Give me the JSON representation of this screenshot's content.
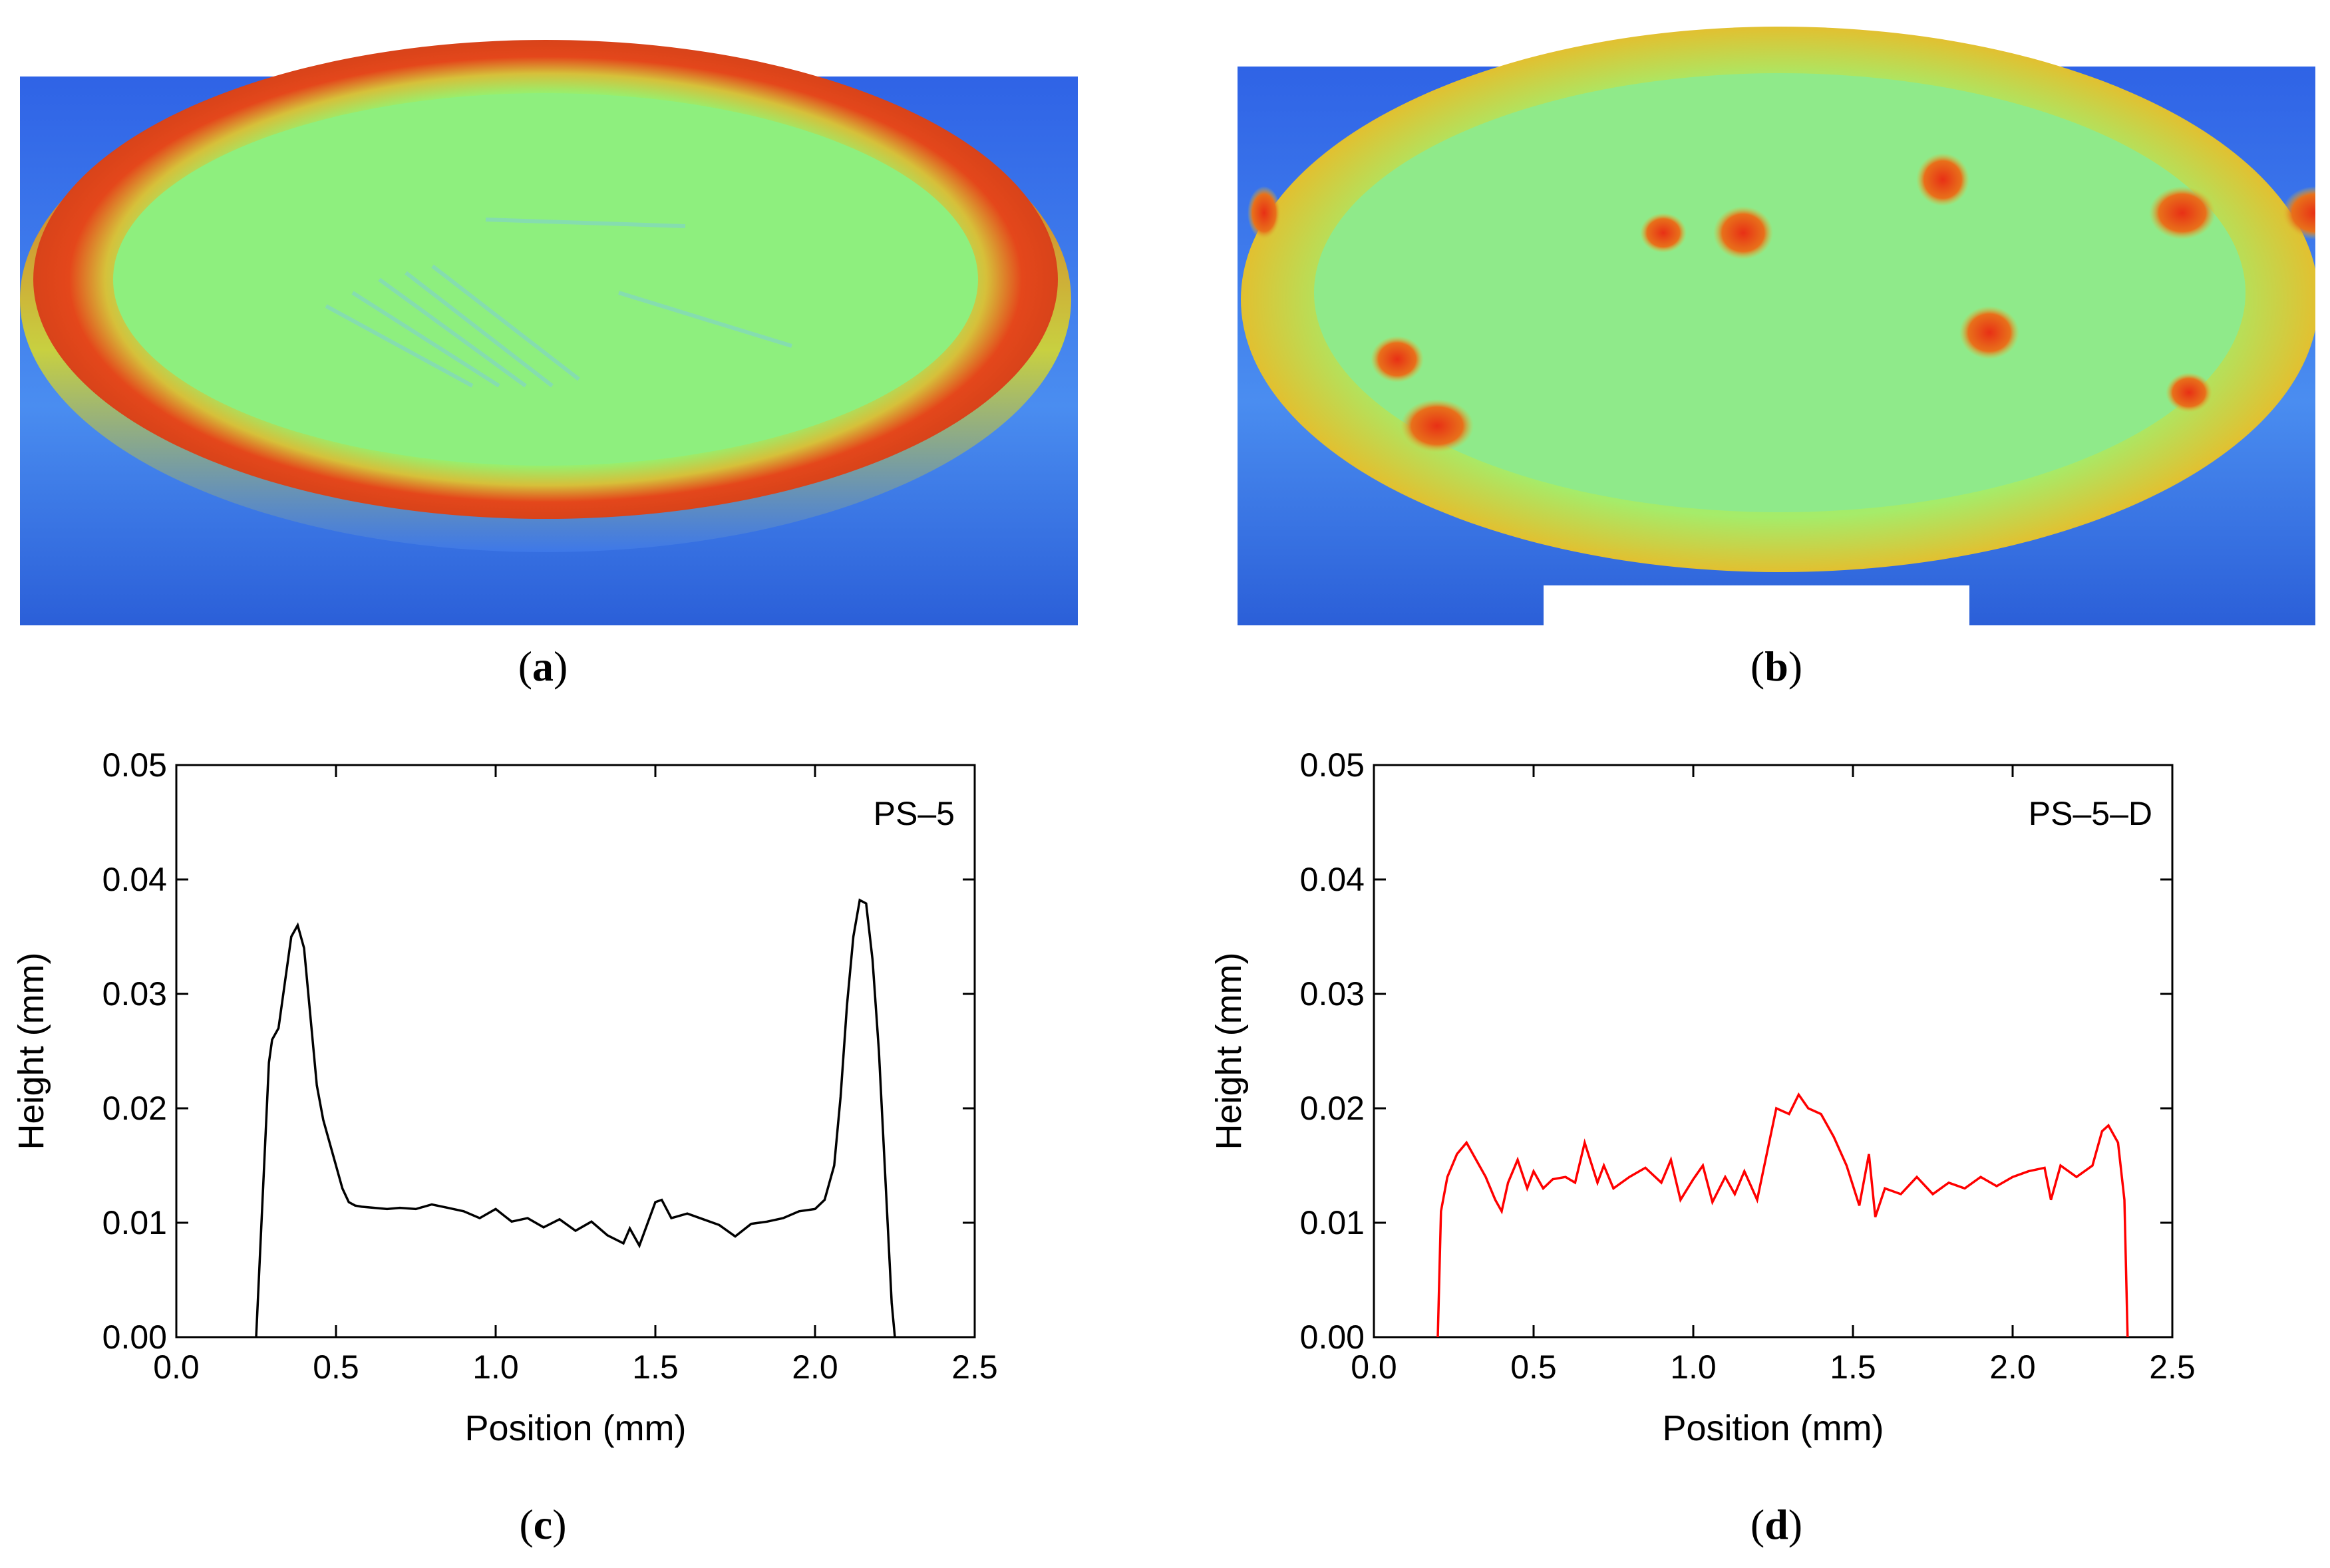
{
  "panels": {
    "a": {
      "caption_open": "(",
      "caption_letter": "a",
      "caption_close": ")"
    },
    "b": {
      "caption_open": "(",
      "caption_letter": "b",
      "caption_close": ")"
    },
    "c": {
      "caption_open": "(",
      "caption_letter": "c",
      "caption_close": ")"
    },
    "d": {
      "caption_open": "(",
      "caption_letter": "d",
      "caption_close": ")"
    }
  },
  "colors": {
    "substrate_blue": "#2f6fe8",
    "surface_green": "#8cf07a",
    "rim_red": "#e0401a",
    "line_black": "#000000",
    "line_red": "#ff0000"
  },
  "chart_data": [
    {
      "type": "line",
      "panel": "c",
      "legend_label": "PS–5",
      "xlabel": "Position (mm)",
      "ylabel": "Height (mm)",
      "xlim": [
        0.0,
        2.5
      ],
      "ylim": [
        0.0,
        0.05
      ],
      "xticks": [
        "0.0",
        "0.5",
        "1.0",
        "1.5",
        "2.0",
        "2.5"
      ],
      "yticks": [
        "0.00",
        "0.01",
        "0.02",
        "0.03",
        "0.04",
        "0.05"
      ],
      "color": "#000000",
      "series": [
        {
          "name": "PS–5",
          "x": [
            0.25,
            0.27,
            0.29,
            0.3,
            0.32,
            0.34,
            0.36,
            0.38,
            0.4,
            0.42,
            0.44,
            0.46,
            0.48,
            0.5,
            0.52,
            0.54,
            0.56,
            0.58,
            0.62,
            0.66,
            0.7,
            0.75,
            0.8,
            0.85,
            0.9,
            0.95,
            1.0,
            1.05,
            1.1,
            1.15,
            1.2,
            1.25,
            1.3,
            1.35,
            1.4,
            1.42,
            1.45,
            1.5,
            1.52,
            1.55,
            1.6,
            1.65,
            1.7,
            1.75,
            1.8,
            1.85,
            1.9,
            1.95,
            2.0,
            2.03,
            2.06,
            2.08,
            2.1,
            2.12,
            2.14,
            2.16,
            2.18,
            2.2,
            2.22,
            2.24,
            2.25
          ],
          "y": [
            0.0,
            0.012,
            0.024,
            0.026,
            0.027,
            0.031,
            0.035,
            0.036,
            0.034,
            0.028,
            0.022,
            0.019,
            0.017,
            0.015,
            0.013,
            0.0118,
            0.0115,
            0.0114,
            0.0113,
            0.0112,
            0.0113,
            0.0112,
            0.0116,
            0.0113,
            0.011,
            0.0104,
            0.0112,
            0.0101,
            0.0104,
            0.0096,
            0.0103,
            0.0093,
            0.0101,
            0.0089,
            0.0082,
            0.0095,
            0.008,
            0.0118,
            0.012,
            0.0104,
            0.0108,
            0.0103,
            0.0098,
            0.0088,
            0.0099,
            0.0101,
            0.0104,
            0.011,
            0.0112,
            0.012,
            0.015,
            0.021,
            0.029,
            0.035,
            0.0382,
            0.0379,
            0.033,
            0.025,
            0.014,
            0.003,
            0.0
          ]
        }
      ]
    },
    {
      "type": "line",
      "panel": "d",
      "legend_label": "PS–5–D",
      "xlabel": "Position (mm)",
      "ylabel": "Height (mm)",
      "xlim": [
        0.0,
        2.5
      ],
      "ylim": [
        0.0,
        0.05
      ],
      "xticks": [
        "0.0",
        "0.5",
        "1.0",
        "1.5",
        "2.0",
        "2.5"
      ],
      "yticks": [
        "0.00",
        "0.01",
        "0.02",
        "0.03",
        "0.04",
        "0.05"
      ],
      "color": "#ff0000",
      "series": [
        {
          "name": "PS–5–D",
          "x": [
            0.2,
            0.21,
            0.23,
            0.26,
            0.29,
            0.32,
            0.35,
            0.38,
            0.4,
            0.42,
            0.45,
            0.48,
            0.5,
            0.53,
            0.56,
            0.6,
            0.63,
            0.66,
            0.7,
            0.72,
            0.75,
            0.8,
            0.85,
            0.9,
            0.93,
            0.96,
            1.0,
            1.03,
            1.06,
            1.1,
            1.13,
            1.16,
            1.2,
            1.23,
            1.26,
            1.3,
            1.33,
            1.36,
            1.4,
            1.44,
            1.48,
            1.52,
            1.55,
            1.57,
            1.6,
            1.65,
            1.7,
            1.75,
            1.8,
            1.85,
            1.9,
            1.95,
            2.0,
            2.05,
            2.1,
            2.12,
            2.15,
            2.2,
            2.25,
            2.28,
            2.3,
            2.33,
            2.35,
            2.36
          ],
          "y": [
            0.0,
            0.011,
            0.014,
            0.016,
            0.017,
            0.0155,
            0.014,
            0.012,
            0.011,
            0.0135,
            0.0155,
            0.013,
            0.0145,
            0.013,
            0.0138,
            0.014,
            0.0135,
            0.017,
            0.0135,
            0.015,
            0.013,
            0.014,
            0.0148,
            0.0135,
            0.0155,
            0.012,
            0.0138,
            0.015,
            0.0118,
            0.014,
            0.0125,
            0.0145,
            0.012,
            0.016,
            0.02,
            0.0195,
            0.0212,
            0.02,
            0.0195,
            0.0175,
            0.015,
            0.0115,
            0.016,
            0.0105,
            0.013,
            0.0125,
            0.014,
            0.0125,
            0.0135,
            0.013,
            0.014,
            0.0132,
            0.014,
            0.0145,
            0.0148,
            0.012,
            0.015,
            0.014,
            0.015,
            0.018,
            0.0185,
            0.017,
            0.012,
            0.0
          ]
        }
      ]
    }
  ]
}
